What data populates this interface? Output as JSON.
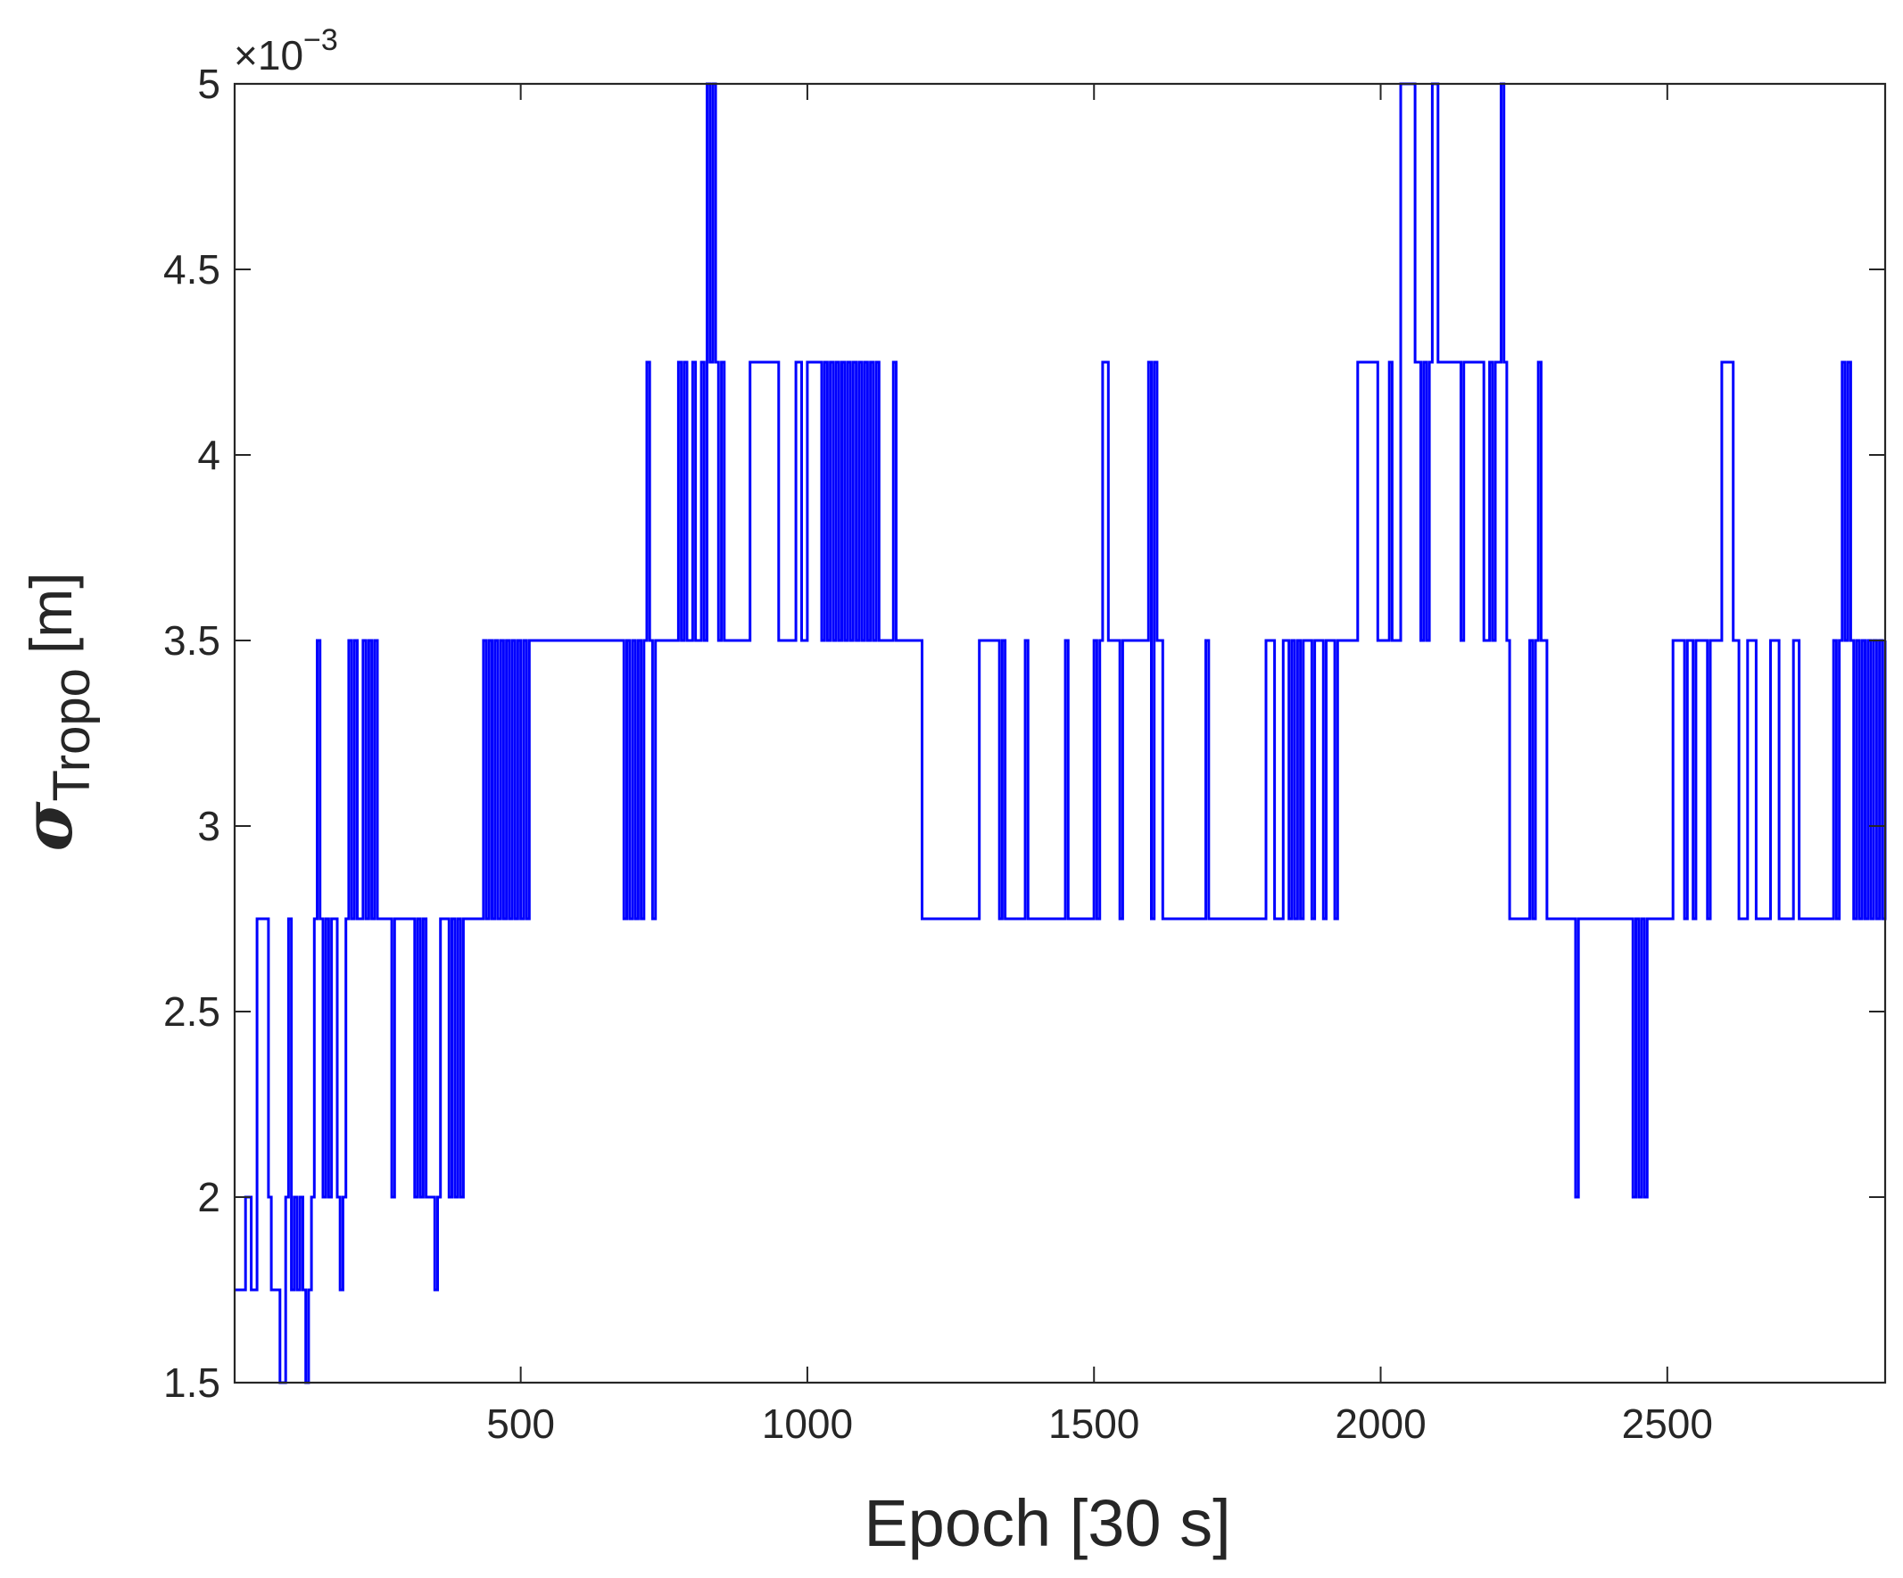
{
  "chart_data": {
    "type": "line",
    "title": "",
    "xlabel": "Epoch [30 s]",
    "ylabel_symbol": "σ",
    "ylabel_subscript": "Tropo",
    "ylabel_unit": "[m]",
    "exponent_base": "×10",
    "exponent_power": "−3",
    "xlim": [
      1,
      2880
    ],
    "ylim": [
      1.5,
      5
    ],
    "xticks": [
      500,
      1000,
      1500,
      2000,
      2500
    ],
    "xtick_labels": [
      "500",
      "1000",
      "1500",
      "2000",
      "2500"
    ],
    "yticks": [
      1.5,
      2,
      2.5,
      3,
      3.5,
      4,
      4.5,
      5
    ],
    "ytick_labels": [
      "1.5",
      "2",
      "2.5",
      "3",
      "3.5",
      "4",
      "4.5",
      "5"
    ],
    "grid": false,
    "legend": "none",
    "series": [
      {
        "color": "#0000ff",
        "x": [
          1,
          20,
          30,
          40,
          60,
          65,
          80,
          90,
          95,
          100,
          105,
          110,
          115,
          120,
          125,
          130,
          135,
          140,
          145,
          150,
          155,
          160,
          165,
          170,
          175,
          180,
          185,
          190,
          195,
          200,
          205,
          210,
          215,
          220,
          225,
          230,
          235,
          240,
          245,
          250,
          255,
          260,
          265,
          270,
          275,
          280,
          285,
          290,
          295,
          300,
          305,
          310,
          315,
          320,
          325,
          330,
          335,
          340,
          345,
          350,
          355,
          360,
          365,
          370,
          375,
          380,
          385,
          390,
          395,
          400,
          405,
          410,
          415,
          420,
          425,
          430,
          435,
          440,
          445,
          450,
          455,
          460,
          465,
          470,
          475,
          480,
          485,
          490,
          495,
          500,
          505,
          510,
          515,
          520,
          525,
          530,
          535,
          540,
          545,
          550,
          600,
          650,
          680,
          685,
          690,
          695,
          700,
          705,
          710,
          715,
          720,
          725,
          730,
          735,
          740,
          745,
          750,
          755,
          760,
          765,
          770,
          775,
          780,
          785,
          790,
          795,
          800,
          805,
          810,
          815,
          820,
          825,
          830,
          835,
          840,
          845,
          850,
          855,
          860,
          865,
          870,
          880,
          900,
          930,
          935,
          950,
          980,
          990,
          995,
          1000,
          1025,
          1030,
          1035,
          1040,
          1045,
          1050,
          1055,
          1060,
          1065,
          1070,
          1075,
          1080,
          1085,
          1090,
          1095,
          1100,
          1105,
          1110,
          1115,
          1120,
          1125,
          1130,
          1140,
          1150,
          1155,
          1160,
          1165,
          1200,
          1235,
          1240,
          1300,
          1335,
          1340,
          1345,
          1350,
          1380,
          1385,
          1400,
          1450,
          1455,
          1460,
          1480,
          1500,
          1505,
          1510,
          1515,
          1520,
          1525,
          1540,
          1545,
          1550,
          1555,
          1560,
          1595,
          1600,
          1605,
          1610,
          1620,
          1690,
          1695,
          1700,
          1780,
          1785,
          1800,
          1810,
          1815,
          1830,
          1835,
          1840,
          1845,
          1850,
          1855,
          1860,
          1865,
          1880,
          1885,
          1890,
          1900,
          1905,
          1915,
          1920,
          1925,
          1940,
          1960,
          1995,
          2015,
          2020,
          2025,
          2030,
          2035,
          2060,
          2065,
          2070,
          2075,
          2080,
          2085,
          2090,
          2100,
          2130,
          2135,
          2140,
          2145,
          2180,
          2185,
          2190,
          2195,
          2200,
          2205,
          2210,
          2215,
          2220,
          2225,
          2230,
          2250,
          2260,
          2265,
          2270,
          2275,
          2280,
          2285,
          2290,
          2295,
          2300,
          2340,
          2345,
          2350,
          2440,
          2445,
          2450,
          2455,
          2460,
          2465,
          2470,
          2510,
          2515,
          2530,
          2535,
          2545,
          2550,
          2570,
          2575,
          2590,
          2595,
          2615,
          2620,
          2625,
          2640,
          2650,
          2655,
          2680,
          2690,
          2695,
          2720,
          2730,
          2735,
          2790,
          2795,
          2800,
          2805,
          2810,
          2815,
          2820,
          2825,
          2830,
          2835,
          2840,
          2845,
          2850,
          2855,
          2860,
          2865,
          2870,
          2875,
          2880
        ],
        "y": [
          1.75,
          2.0,
          1.75,
          2.75,
          2.0,
          1.75,
          1.5,
          2.0,
          2.75,
          1.75,
          2.0,
          1.75,
          2.0,
          1.75,
          1.5,
          1.75,
          2.0,
          2.75,
          3.5,
          2.75,
          2.0,
          2.75,
          2.0,
          2.75,
          2.75,
          2.0,
          1.75,
          2.0,
          2.75,
          3.5,
          2.75,
          3.5,
          2.75,
          2.75,
          3.5,
          2.75,
          3.5,
          2.75,
          3.5,
          2.75,
          2.75,
          2.75,
          2.75,
          2.75,
          2.0,
          2.75,
          2.75,
          2.75,
          2.75,
          2.75,
          2.75,
          2.75,
          2.0,
          2.75,
          2.0,
          2.75,
          2.0,
          2.0,
          2.0,
          1.75,
          2.0,
          2.75,
          2.75,
          2.75,
          2.0,
          2.75,
          2.0,
          2.75,
          2.0,
          2.75,
          2.75,
          2.75,
          2.75,
          2.75,
          2.75,
          2.75,
          3.5,
          2.75,
          3.5,
          2.75,
          3.5,
          2.75,
          3.5,
          2.75,
          3.5,
          2.75,
          3.5,
          2.75,
          3.5,
          2.75,
          3.5,
          2.75,
          3.5,
          3.5,
          3.5,
          3.5,
          3.5,
          3.5,
          3.5,
          3.5,
          3.5,
          3.5,
          2.75,
          3.5,
          2.75,
          3.5,
          2.75,
          3.5,
          2.75,
          3.5,
          4.25,
          3.5,
          2.75,
          3.5,
          3.5,
          3.5,
          3.5,
          3.5,
          3.5,
          3.5,
          3.5,
          4.25,
          3.5,
          4.25,
          3.5,
          3.5,
          4.25,
          3.5,
          3.5,
          4.25,
          3.5,
          5.0,
          4.25,
          5.0,
          4.25,
          3.5,
          4.25,
          3.5,
          3.5,
          3.5,
          3.5,
          3.5,
          4.25,
          4.25,
          4.25,
          3.5,
          4.25,
          3.5,
          3.5,
          4.25,
          3.5,
          4.25,
          3.5,
          4.25,
          3.5,
          4.25,
          3.5,
          4.25,
          3.5,
          4.25,
          3.5,
          4.25,
          3.5,
          4.25,
          3.5,
          4.25,
          3.5,
          4.25,
          3.5,
          4.25,
          3.5,
          3.5,
          3.5,
          4.25,
          3.5,
          3.5,
          3.5,
          2.75,
          2.75,
          2.75,
          3.5,
          2.75,
          3.5,
          2.75,
          2.75,
          3.5,
          2.75,
          2.75,
          3.5,
          2.75,
          2.75,
          2.75,
          3.5,
          2.75,
          3.5,
          4.25,
          4.25,
          3.5,
          3.5,
          2.75,
          3.5,
          3.5,
          3.5,
          4.25,
          2.75,
          4.25,
          3.5,
          2.75,
          2.75,
          3.5,
          2.75,
          2.75,
          2.75,
          3.5,
          3.5,
          2.75,
          3.5,
          3.5,
          2.75,
          3.5,
          2.75,
          3.5,
          2.75,
          3.5,
          2.75,
          3.5,
          3.5,
          2.75,
          3.5,
          3.5,
          2.75,
          3.5,
          3.5,
          4.25,
          3.5,
          4.25,
          3.5,
          3.5,
          3.5,
          5.0,
          4.25,
          4.25,
          3.5,
          4.25,
          3.5,
          4.25,
          5.0,
          4.25,
          4.25,
          4.25,
          3.5,
          4.25,
          3.5,
          3.5,
          4.25,
          3.5,
          4.25,
          4.25,
          5.0,
          4.25,
          3.5,
          2.75,
          2.75,
          2.75,
          3.5,
          2.75,
          3.5,
          4.25,
          3.5,
          3.5,
          2.75,
          2.75,
          2.75,
          2.0,
          2.75,
          2.75,
          2.0,
          2.75,
          2.0,
          2.75,
          2.0,
          2.75,
          2.75,
          3.5,
          3.5,
          2.75,
          3.5,
          2.75,
          3.5,
          2.75,
          3.5,
          3.5,
          4.25,
          3.5,
          3.5,
          2.75,
          3.5,
          3.5,
          2.75,
          3.5,
          3.5,
          2.75,
          3.5,
          2.75,
          2.75,
          3.5,
          2.75,
          3.5,
          4.25,
          3.5,
          4.25,
          3.5,
          2.75,
          3.5,
          2.75,
          3.5,
          2.75,
          3.5,
          2.75,
          3.5,
          2.75,
          3.5,
          2.75,
          3.5
        ]
      }
    ]
  }
}
